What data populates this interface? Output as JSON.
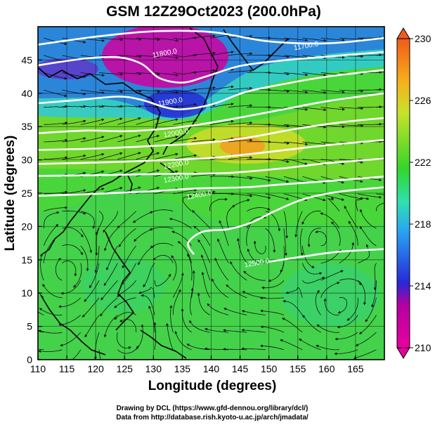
{
  "title": "GSM 12Z29Oct2023 (200.0hPa)",
  "xlabel": "Longitude (degrees)",
  "ylabel": "Latitude  (degrees)",
  "credits": [
    "Drawing by DCL (https://www.gfd-dennou.org/library/dcl/)",
    "Data from http://database.rish.kyoto-u.ac.jp/arch/jmadata/"
  ],
  "colors": {
    "frame": "#000000",
    "contour": "#ffffff",
    "streamline": "#111111",
    "coast": "#000000"
  },
  "map": {
    "lon_range": [
      110,
      170
    ],
    "lat_range": [
      0,
      50
    ],
    "x_ticks": [
      "110",
      "115",
      "120",
      "125",
      "130",
      "135",
      "140",
      "145",
      "150",
      "155",
      "160",
      "165"
    ],
    "y_ticks": [
      "0",
      "5",
      "10",
      "15",
      "20",
      "25",
      "30",
      "35",
      "40",
      "45"
    ],
    "colorbar": {
      "range": [
        210,
        230
      ],
      "labels": [
        "230",
        "226",
        "222",
        "218",
        "214",
        "210"
      ],
      "colors": [
        "#e8009f",
        "#2828d8",
        "#29a6f2",
        "#2fe0b0",
        "#33d62b",
        "#c8e22a",
        "#f6b01c",
        "#f05a1a"
      ]
    },
    "contours": [
      {
        "label": "11700.0",
        "points": [
          [
            110,
            47.3
          ],
          [
            120,
            48.5
          ],
          [
            130,
            49.3
          ],
          [
            140,
            49.2
          ],
          [
            150,
            47.8
          ],
          [
            160,
            47.5
          ],
          [
            170,
            48.3
          ]
        ]
      },
      {
        "label": "11800.0",
        "points": [
          [
            110,
            44.2
          ],
          [
            118,
            45.2
          ],
          [
            124,
            45.4
          ],
          [
            128,
            44.4
          ],
          [
            131,
            42.3
          ],
          [
            135,
            41.6
          ],
          [
            139,
            42.5
          ],
          [
            145,
            44.1
          ],
          [
            152,
            44.9
          ],
          [
            160,
            45.5
          ],
          [
            170,
            46.2
          ]
        ]
      },
      {
        "label": "11900.0",
        "points": [
          [
            110,
            38.5
          ],
          [
            117,
            39.0
          ],
          [
            124,
            39.5
          ],
          [
            128,
            39.0
          ],
          [
            132,
            37.9
          ],
          [
            135,
            37.6
          ],
          [
            140,
            38.3
          ],
          [
            146,
            40.2
          ],
          [
            152,
            41.3
          ],
          [
            160,
            42.5
          ],
          [
            170,
            43.5
          ]
        ]
      },
      {
        "label": "12000.0",
        "points": [
          [
            110,
            34.0
          ],
          [
            118,
            34.4
          ],
          [
            125,
            34.3
          ],
          [
            131,
            34.6
          ],
          [
            137,
            35.2
          ],
          [
            144,
            36.2
          ],
          [
            152,
            37.5
          ],
          [
            160,
            38.8
          ],
          [
            170,
            40.0
          ]
        ]
      },
      {
        "label": "12100.0",
        "points": [
          [
            110,
            31.5
          ],
          [
            120,
            31.7
          ],
          [
            130,
            32.1
          ],
          [
            138,
            32.5
          ],
          [
            146,
            33.3
          ],
          [
            155,
            34.7
          ],
          [
            163,
            35.7
          ],
          [
            170,
            36.3
          ]
        ]
      },
      {
        "label": "12200.0",
        "points": [
          [
            110,
            29.4
          ],
          [
            120,
            29.6
          ],
          [
            130,
            29.9
          ],
          [
            140,
            30.3
          ],
          [
            150,
            31.2
          ],
          [
            160,
            32.2
          ],
          [
            170,
            33.0
          ]
        ]
      },
      {
        "label": "12300.0",
        "points": [
          [
            110,
            27.6
          ],
          [
            120,
            27.7
          ],
          [
            132,
            27.9
          ],
          [
            142,
            28.0
          ],
          [
            152,
            28.7
          ],
          [
            160,
            29.5
          ],
          [
            170,
            30.2
          ]
        ]
      },
      {
        "label": "12400.0",
        "points": [
          [
            110,
            24.6
          ],
          [
            120,
            24.9
          ],
          [
            130,
            25.3
          ],
          [
            137,
            25.7
          ],
          [
            146,
            25.9
          ],
          [
            152,
            26.3
          ],
          [
            160,
            26.8
          ],
          [
            170,
            27.5
          ]
        ]
      },
      {
        "label": "12500.0",
        "points": [
          [
            137,
            15.8
          ],
          [
            136,
            17.5
          ],
          [
            138.5,
            19.2
          ],
          [
            143,
            19.6
          ],
          [
            147,
            20.6
          ],
          [
            151,
            22.3
          ],
          [
            156,
            24.1
          ],
          [
            162,
            25.2
          ],
          [
            170,
            25.9
          ]
        ]
      },
      {
        "label": "12500.0",
        "points": [
          [
            150,
            14.7
          ],
          [
            156,
            15.5
          ],
          [
            162,
            16.2
          ],
          [
            170,
            16.6
          ]
        ]
      }
    ],
    "contour_label_positions": [
      {
        "label": "11700.0",
        "lon": 156.5,
        "lat": 46.8
      },
      {
        "label": "11800.0",
        "lon": 132,
        "lat": 45.7
      },
      {
        "label": "11900.0",
        "lon": 133,
        "lat": 38.4
      },
      {
        "label": "12000.0",
        "lon": 134,
        "lat": 33.7
      },
      {
        "label": "12200.0",
        "lon": 134,
        "lat": 29.0
      },
      {
        "label": "12300.0",
        "lon": 134,
        "lat": 26.9
      },
      {
        "label": "12400.0",
        "lon": 138,
        "lat": 24.4
      },
      {
        "label": "12500.0",
        "lon": 148,
        "lat": 14.2
      }
    ]
  }
}
